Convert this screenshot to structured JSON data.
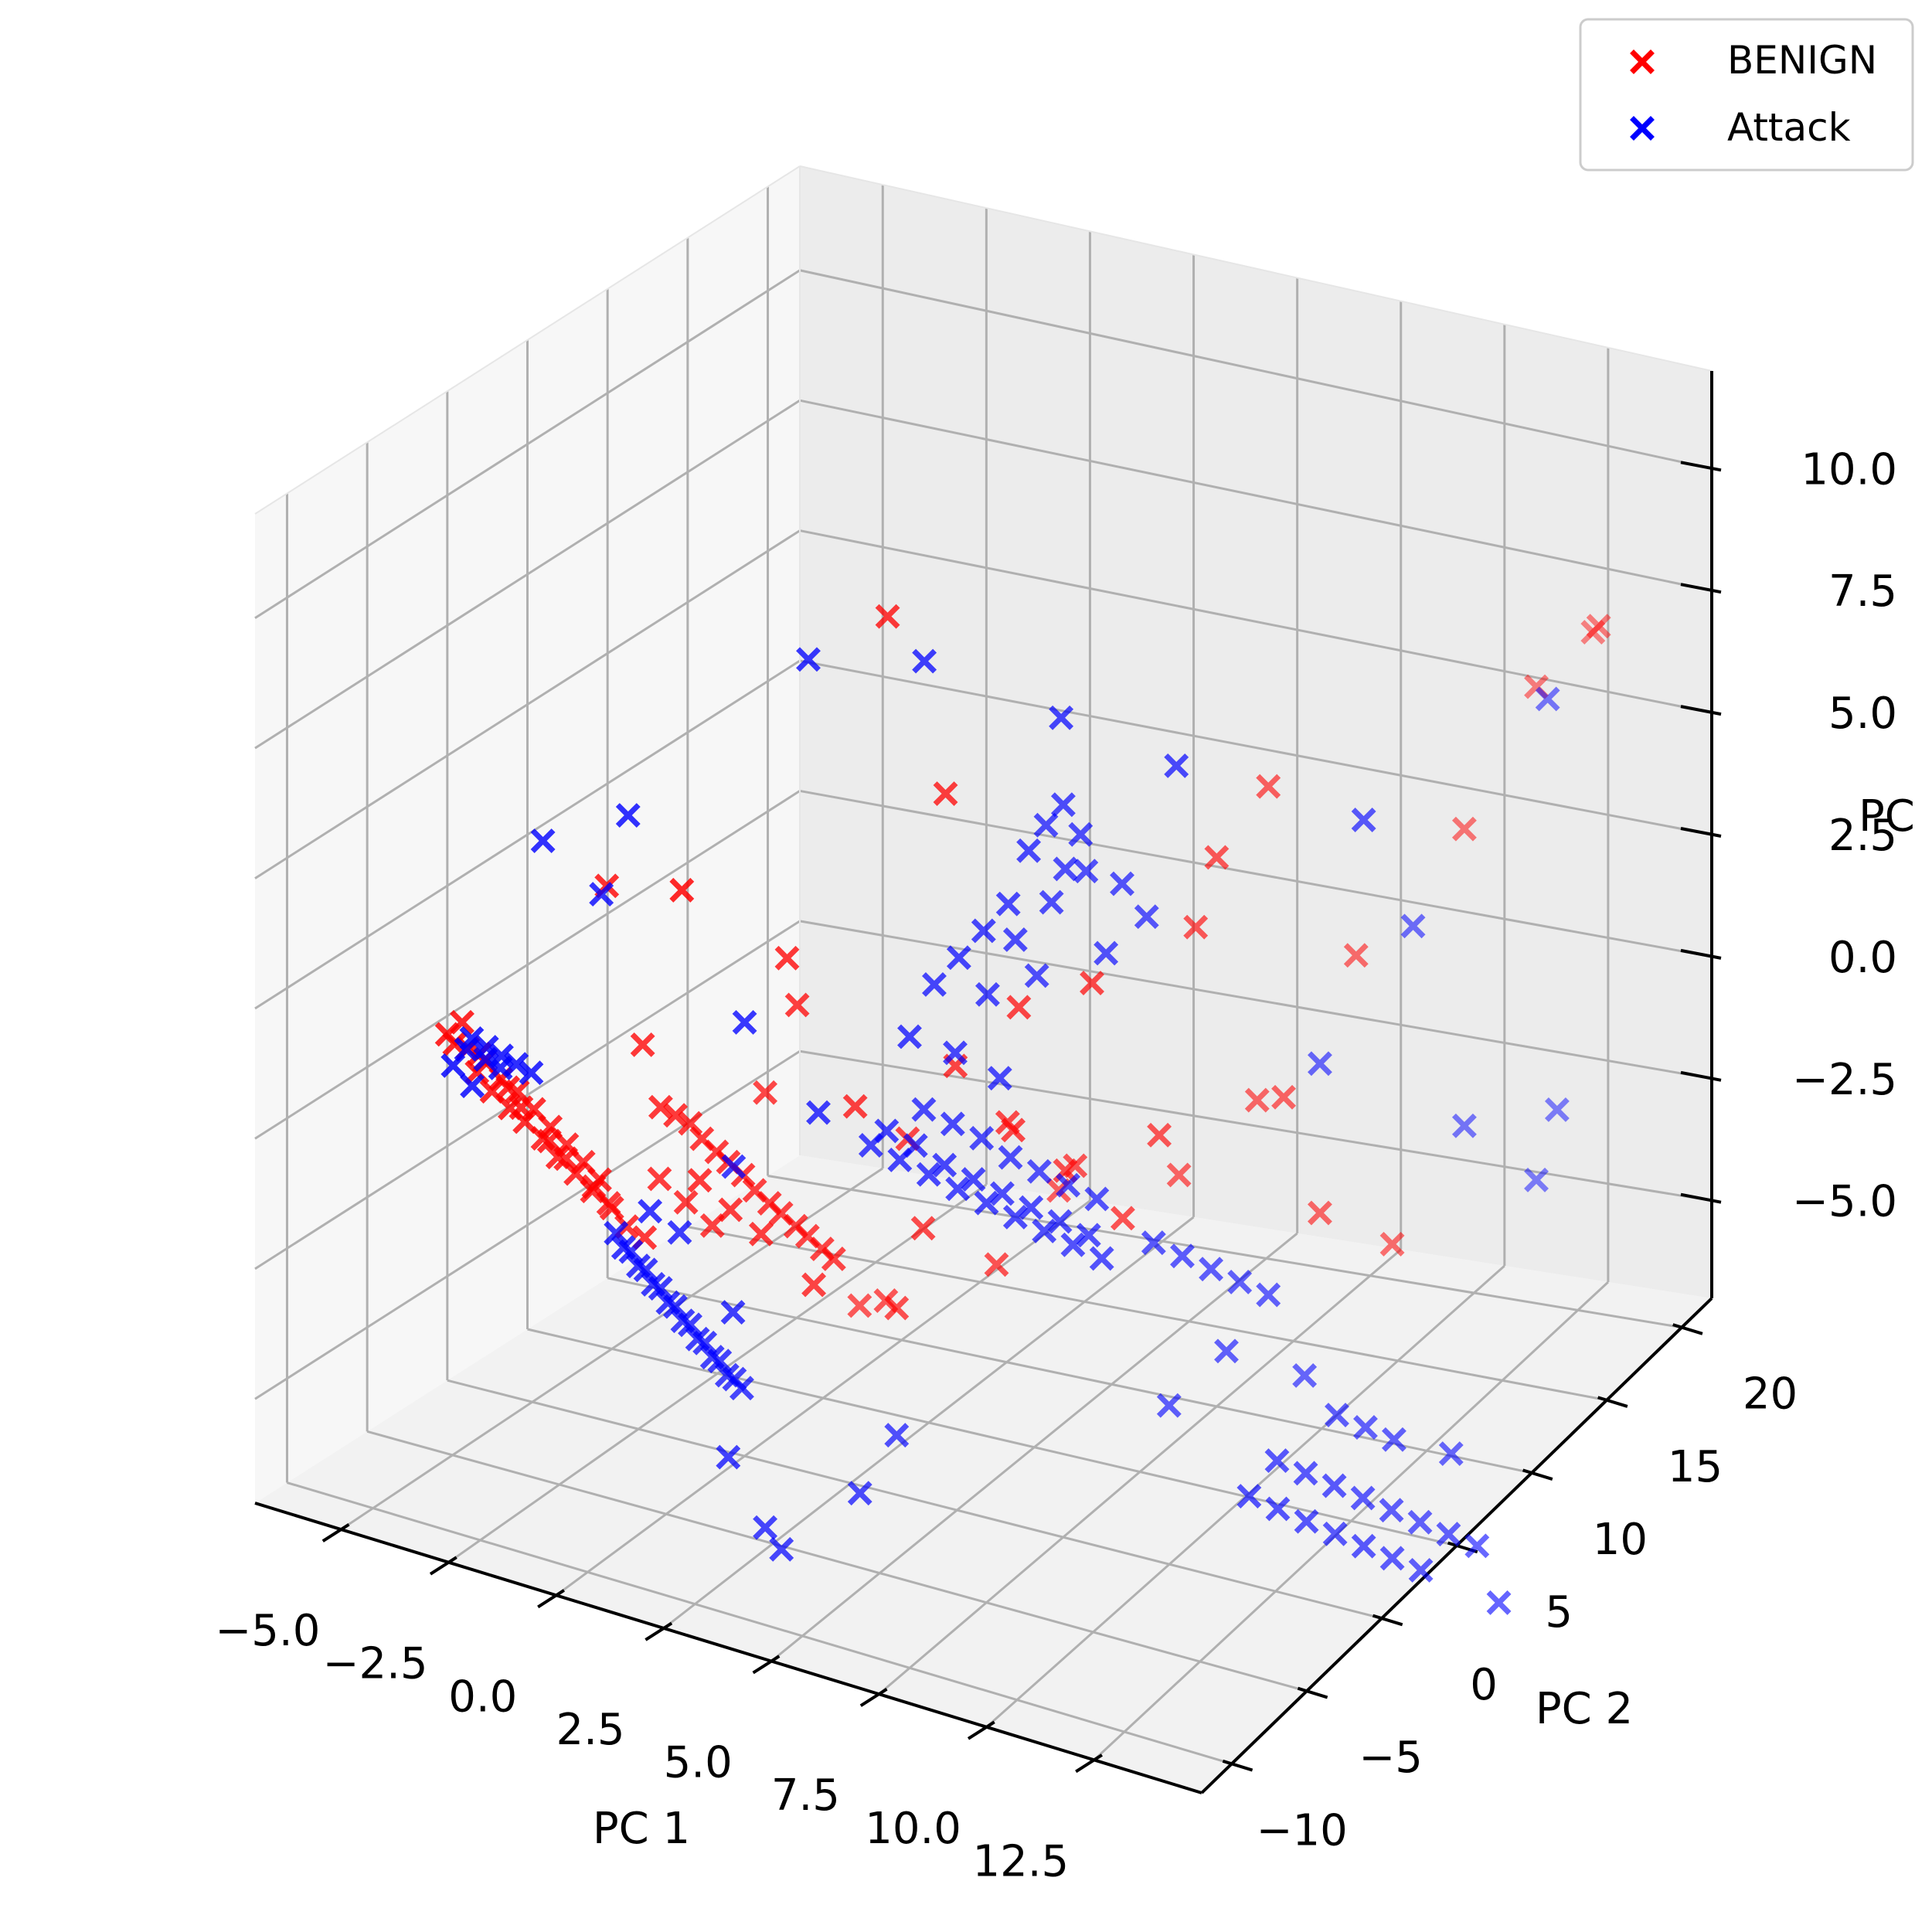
{
  "chart_data": {
    "type": "scatter",
    "projection": "3d",
    "title": "",
    "xlabel": "PC 1",
    "ylabel": "PC 2",
    "zlabel": "PC",
    "xlim": [
      -7,
      15
    ],
    "ylim": [
      -12,
      22
    ],
    "zlim": [
      -7,
      12
    ],
    "x_ticks": [
      -5.0,
      -2.5,
      0.0,
      2.5,
      5.0,
      7.5,
      10.0,
      12.5
    ],
    "x_tick_labels": [
      "−5.0",
      "−2.5",
      "0.0",
      "2.5",
      "5.0",
      "7.5",
      "10.0",
      "12.5"
    ],
    "y_ticks": [
      -10,
      -5,
      0,
      5,
      10,
      15,
      20
    ],
    "y_tick_labels": [
      "−10",
      "−5",
      "0",
      "5",
      "10",
      "15",
      "20"
    ],
    "z_ticks": [
      -5.0,
      -2.5,
      0.0,
      2.5,
      5.0,
      7.5,
      10.0
    ],
    "z_tick_labels": [
      "−5.0",
      "−2.5",
      "0.0",
      "2.5",
      "5.0",
      "7.5",
      "10.0"
    ],
    "grid": true,
    "legend_position": "top-right",
    "marker": "x",
    "series": [
      {
        "name": "BENIGN",
        "color": "#ff0000",
        "points": [
          [
            -5.5,
            -4.0,
            0.8
          ],
          [
            -5.2,
            -3.5,
            0.5
          ],
          [
            -5.0,
            -3.0,
            0.2
          ],
          [
            -4.8,
            -2.5,
            -0.2
          ],
          [
            -4.6,
            -2.0,
            -0.5
          ],
          [
            -4.4,
            -1.5,
            -0.9
          ],
          [
            -4.2,
            -1.0,
            -1.3
          ],
          [
            -4.0,
            -0.5,
            -1.7
          ],
          [
            -3.8,
            0.0,
            -2.1
          ],
          [
            -3.6,
            0.5,
            -2.5
          ],
          [
            -5.4,
            -3.8,
            0.6
          ],
          [
            -5.1,
            -3.2,
            0.0
          ],
          [
            -4.9,
            -2.8,
            -0.4
          ],
          [
            -4.7,
            -2.2,
            -0.8
          ],
          [
            -4.5,
            -1.8,
            -1.1
          ],
          [
            -4.3,
            -1.2,
            -1.5
          ],
          [
            -4.1,
            -0.8,
            -1.9
          ],
          [
            -3.9,
            -0.2,
            -2.3
          ],
          [
            -3.7,
            0.3,
            -2.7
          ],
          [
            -3.5,
            0.8,
            -3.0
          ],
          [
            -5.3,
            -3.6,
            1.0
          ],
          [
            -5.0,
            -3.3,
            0.4
          ],
          [
            -4.6,
            -2.6,
            -0.3
          ],
          [
            -4.4,
            -2.3,
            -0.7
          ],
          [
            -4.0,
            -1.6,
            -1.4
          ],
          [
            -3.8,
            -1.1,
            -1.8
          ],
          [
            -3.4,
            -0.4,
            -2.4
          ],
          [
            -3.2,
            0.2,
            -2.9
          ],
          [
            -3.0,
            0.6,
            -3.3
          ],
          [
            -2.8,
            1.2,
            -3.6
          ],
          [
            -2.0,
            1.0,
            -1.0
          ],
          [
            -1.6,
            1.6,
            -1.5
          ],
          [
            -1.2,
            2.2,
            -2.0
          ],
          [
            -0.8,
            2.8,
            -2.6
          ],
          [
            -0.4,
            3.4,
            -3.1
          ],
          [
            0.0,
            4.0,
            -3.6
          ],
          [
            0.4,
            4.6,
            -4.1
          ],
          [
            -1.8,
            1.4,
            -1.2
          ],
          [
            -1.4,
            2.0,
            -1.8
          ],
          [
            -1.0,
            2.6,
            -2.3
          ],
          [
            -0.6,
            3.2,
            -2.9
          ],
          [
            -0.2,
            3.8,
            -3.4
          ],
          [
            0.2,
            4.4,
            -3.9
          ],
          [
            -2.2,
            0.6,
            -0.8
          ],
          [
            -1.5,
            1.2,
            -2.2
          ],
          [
            -1.0,
            1.8,
            -2.8
          ],
          [
            -0.5,
            2.4,
            -3.3
          ],
          [
            0.3,
            3.6,
            -4.4
          ],
          [
            -2.6,
            1.6,
            -2.5
          ],
          [
            -2.2,
            2.2,
            -3.0
          ],
          [
            -1.8,
            2.8,
            -3.5
          ],
          [
            -2.4,
            0.0,
            0.5
          ],
          [
            -1.0,
            4.0,
            -1.0
          ],
          [
            0.5,
            2.0,
            1.5
          ],
          [
            1.5,
            3.0,
            -0.5
          ],
          [
            2.0,
            5.0,
            -1.5
          ],
          [
            3.5,
            4.0,
            0.5
          ],
          [
            4.0,
            6.0,
            -1.0
          ],
          [
            5.0,
            7.0,
            -2.0
          ],
          [
            6.0,
            8.0,
            -3.0
          ],
          [
            1.0,
            0.0,
            3.0
          ],
          [
            -2.5,
            -2.0,
            4.0
          ],
          [
            0.0,
            -4.0,
            5.0
          ],
          [
            2.0,
            6.0,
            -3.5
          ],
          [
            3.0,
            8.0,
            -4.5
          ],
          [
            4.5,
            9.0,
            -2.5
          ],
          [
            1.0,
            7.0,
            -5.5
          ],
          [
            0.0,
            9.0,
            -6.0
          ],
          [
            -1.0,
            10.0,
            -6.5
          ],
          [
            3.0,
            12.0,
            -4.0
          ],
          [
            5.5,
            13.0,
            -3.5
          ],
          [
            7.0,
            14.0,
            -2.0
          ],
          [
            8.0,
            13.0,
            -1.5
          ],
          [
            9.0,
            15.0,
            1.0
          ],
          [
            10.5,
            18.0,
            3.0
          ],
          [
            11.5,
            20.0,
            5.5
          ],
          [
            12.5,
            21.0,
            6.5
          ],
          [
            13.0,
            20.0,
            7.0
          ],
          [
            4.0,
            2.0,
            6.5
          ],
          [
            3.0,
            1.0,
            10.0
          ],
          [
            5.0,
            4.0,
            2.0
          ],
          [
            6.0,
            6.0,
            2.2
          ],
          [
            7.5,
            10.0,
            4.0
          ],
          [
            8.0,
            12.0,
            5.0
          ],
          [
            4.5,
            5.0,
            -0.8
          ],
          [
            7.0,
            10.0,
            2.5
          ],
          [
            6.5,
            9.0,
            -1.5
          ],
          [
            8.5,
            14.0,
            -4.0
          ],
          [
            9.5,
            16.0,
            -5.0
          ]
        ]
      },
      {
        "name": "Attack",
        "color": "#0000ff",
        "points": [
          [
            -5.0,
            -3.8,
            0.8
          ],
          [
            -4.8,
            -3.4,
            0.6
          ],
          [
            -4.6,
            -3.0,
            0.4
          ],
          [
            -4.4,
            -2.6,
            0.2
          ],
          [
            -4.2,
            -2.2,
            0.0
          ],
          [
            -5.2,
            -3.6,
            0.5
          ],
          [
            -4.9,
            -3.2,
            0.3
          ],
          [
            -4.7,
            -2.8,
            0.1
          ],
          [
            -5.4,
            -3.9,
            0.2
          ],
          [
            -5.1,
            -3.5,
            -0.2
          ],
          [
            -3.4,
            1.0,
            -3.6
          ],
          [
            -3.2,
            1.4,
            -4.0
          ],
          [
            -3.0,
            1.8,
            -4.4
          ],
          [
            -2.8,
            2.2,
            -4.8
          ],
          [
            -2.6,
            2.6,
            -5.2
          ],
          [
            -2.4,
            3.0,
            -5.6
          ],
          [
            -2.2,
            3.4,
            -6.0
          ],
          [
            -2.0,
            3.8,
            -6.4
          ],
          [
            -1.8,
            4.2,
            -6.8
          ],
          [
            -3.3,
            1.2,
            -3.9
          ],
          [
            -3.1,
            1.6,
            -4.3
          ],
          [
            -2.9,
            2.0,
            -4.7
          ],
          [
            -2.7,
            2.4,
            -5.1
          ],
          [
            -2.5,
            2.8,
            -5.5
          ],
          [
            -2.3,
            3.2,
            -5.9
          ],
          [
            -2.1,
            3.6,
            -6.3
          ],
          [
            -1.9,
            4.0,
            -6.7
          ],
          [
            -1.7,
            4.4,
            -7.0
          ],
          [
            -2.6,
            1.0,
            -3.0
          ],
          [
            -2.2,
            1.8,
            -3.5
          ],
          [
            -1.5,
            3.0,
            -8.0
          ],
          [
            -1.0,
            4.0,
            -9.5
          ],
          [
            -0.8,
            4.5,
            -10.0
          ],
          [
            0.5,
            6.0,
            -9.0
          ],
          [
            1.0,
            7.0,
            -8.0
          ],
          [
            -1.2,
            2.5,
            -5.0
          ],
          [
            1.5,
            4.0,
            -1.5
          ],
          [
            2.0,
            4.5,
            -1.8
          ],
          [
            2.5,
            5.0,
            -2.1
          ],
          [
            3.0,
            5.5,
            -2.4
          ],
          [
            3.5,
            6.0,
            -2.7
          ],
          [
            4.0,
            6.5,
            -3.0
          ],
          [
            4.5,
            7.0,
            -3.3
          ],
          [
            5.0,
            7.5,
            -3.6
          ],
          [
            5.5,
            8.0,
            -3.9
          ],
          [
            1.8,
            4.2,
            -1.2
          ],
          [
            2.3,
            4.7,
            -1.5
          ],
          [
            2.8,
            5.2,
            -1.9
          ],
          [
            3.3,
            5.7,
            -2.2
          ],
          [
            3.8,
            6.2,
            -2.5
          ],
          [
            4.3,
            6.7,
            -2.8
          ],
          [
            4.8,
            7.2,
            -3.1
          ],
          [
            5.3,
            7.7,
            -3.4
          ],
          [
            2.2,
            5.5,
            -1.0
          ],
          [
            2.7,
            6.0,
            -1.3
          ],
          [
            3.2,
            6.5,
            -1.6
          ],
          [
            3.7,
            7.0,
            -2.0
          ],
          [
            4.2,
            7.5,
            -2.3
          ],
          [
            4.7,
            8.0,
            -2.6
          ],
          [
            5.2,
            8.5,
            -2.9
          ],
          [
            6.0,
            10.0,
            -4.0
          ],
          [
            6.5,
            10.5,
            -4.3
          ],
          [
            7.0,
            11.0,
            -4.6
          ],
          [
            7.5,
            11.5,
            -4.9
          ],
          [
            8.0,
            12.0,
            -5.2
          ],
          [
            9.0,
            8.0,
            -8.0
          ],
          [
            9.5,
            8.5,
            -8.3
          ],
          [
            10.0,
            9.0,
            -8.6
          ],
          [
            10.5,
            9.5,
            -8.9
          ],
          [
            11.0,
            10.0,
            -9.2
          ],
          [
            11.5,
            10.5,
            -9.5
          ],
          [
            12.0,
            11.0,
            -9.8
          ],
          [
            9.3,
            9.0,
            -7.5
          ],
          [
            9.8,
            9.5,
            -7.8
          ],
          [
            10.3,
            10.0,
            -8.1
          ],
          [
            10.8,
            10.5,
            -8.4
          ],
          [
            11.3,
            11.0,
            -8.7
          ],
          [
            11.8,
            11.5,
            -9.0
          ],
          [
            12.3,
            12.0,
            -9.3
          ],
          [
            12.8,
            12.5,
            -9.6
          ],
          [
            10.0,
            11.0,
            -7.0
          ],
          [
            10.5,
            11.5,
            -7.3
          ],
          [
            11.0,
            12.0,
            -7.6
          ],
          [
            12.0,
            13.0,
            -8.0
          ],
          [
            13.5,
            12.0,
            -10.5
          ],
          [
            4.5,
            6.0,
            4.5
          ],
          [
            4.8,
            6.3,
            5.0
          ],
          [
            5.1,
            6.6,
            5.4
          ],
          [
            5.4,
            6.9,
            4.8
          ],
          [
            5.0,
            7.0,
            4.0
          ],
          [
            4.2,
            5.5,
            3.5
          ],
          [
            3.8,
            5.0,
            3.0
          ],
          [
            3.4,
            4.5,
            2.5
          ],
          [
            3.0,
            4.0,
            2.0
          ],
          [
            4.0,
            6.5,
            2.5
          ],
          [
            4.6,
            7.2,
            3.2
          ],
          [
            5.2,
            7.8,
            3.8
          ],
          [
            3.6,
            5.8,
            1.5
          ],
          [
            4.4,
            6.8,
            1.8
          ],
          [
            5.6,
            8.0,
            2.2
          ],
          [
            2.6,
            3.5,
            1.0
          ],
          [
            3.2,
            4.8,
            0.5
          ],
          [
            4.0,
            5.5,
            0.0
          ],
          [
            5.8,
            8.5,
            3.5
          ],
          [
            6.2,
            9.0,
            2.8
          ],
          [
            1.5,
            0.0,
            9.0
          ],
          [
            3.5,
            2.0,
            9.0
          ],
          [
            6.0,
            4.0,
            8.0
          ],
          [
            8.0,
            6.0,
            7.0
          ],
          [
            11.0,
            10.0,
            5.5
          ],
          [
            12.5,
            18.0,
            6.0
          ],
          [
            10.0,
            16.0,
            1.5
          ],
          [
            8.5,
            14.0,
            -1.0
          ],
          [
            10.5,
            18.0,
            -3.0
          ],
          [
            11.5,
            20.0,
            -4.5
          ],
          [
            12.0,
            20.0,
            -3.0
          ],
          [
            -4.0,
            -2.0,
            4.5
          ],
          [
            -3.0,
            -1.0,
            3.5
          ],
          [
            -2.0,
            -2.0,
            5.5
          ],
          [
            0.0,
            0.0,
            1.5
          ],
          [
            -1.0,
            2.0,
            -2.0
          ],
          [
            7.0,
            12.0,
            -6.5
          ],
          [
            6.0,
            11.0,
            -7.5
          ],
          [
            1.0,
            2.0,
            -0.5
          ],
          [
            8.5,
            13.0,
            -7.0
          ]
        ]
      }
    ]
  }
}
